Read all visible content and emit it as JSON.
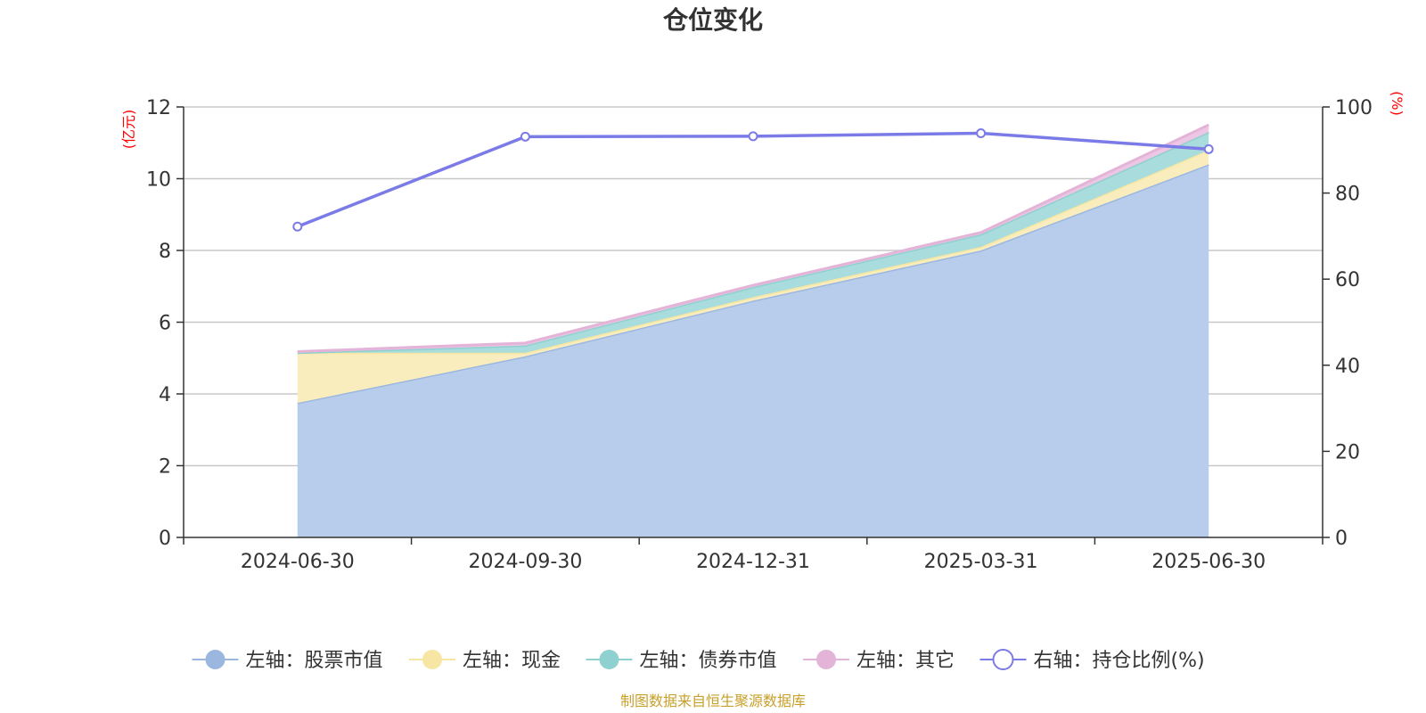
{
  "chart_data": {
    "type": "area",
    "title": "仓位变化",
    "categories": [
      "2024-06-30",
      "2024-09-30",
      "2024-12-31",
      "2025-03-31",
      "2025-06-30"
    ],
    "left_axis": {
      "unit": "(亿元)",
      "ylim": [
        0,
        12
      ],
      "ticks": [
        0,
        2,
        4,
        6,
        8,
        10,
        12
      ]
    },
    "right_axis": {
      "unit": "(%)",
      "ylim": [
        0,
        100
      ],
      "ticks": [
        0,
        20,
        40,
        60,
        80,
        100
      ]
    },
    "stacked": true,
    "grid": true,
    "legend_position": "bottom",
    "series": [
      {
        "name": "左轴：股票市值",
        "axis": "left",
        "kind": "area",
        "color": "#9bb7e0",
        "fill": "#b8cdeb",
        "values": [
          3.75,
          5.05,
          6.6,
          8.0,
          10.4
        ]
      },
      {
        "name": "左轴：现金",
        "axis": "left",
        "kind": "area",
        "color": "#f7e6a3",
        "fill": "#faedbd",
        "values": [
          1.4,
          0.1,
          0.1,
          0.1,
          0.4
        ]
      },
      {
        "name": "左轴：债券市值",
        "axis": "left",
        "kind": "area",
        "color": "#8fd0d0",
        "fill": "#a9dcdc",
        "values": [
          0.0,
          0.2,
          0.28,
          0.35,
          0.5
        ]
      },
      {
        "name": "左轴：其它",
        "axis": "left",
        "kind": "area",
        "color": "#e3b4d8",
        "fill": "#ecc6e3",
        "values": [
          0.03,
          0.07,
          0.05,
          0.05,
          0.2
        ]
      },
      {
        "name": "右轴：持仓比例(%)",
        "axis": "right",
        "kind": "line",
        "color": "#7b7be8",
        "values": [
          72.2,
          93.1,
          93.2,
          93.9,
          90.2
        ]
      }
    ],
    "source": "制图数据来自恒生聚源数据库"
  }
}
